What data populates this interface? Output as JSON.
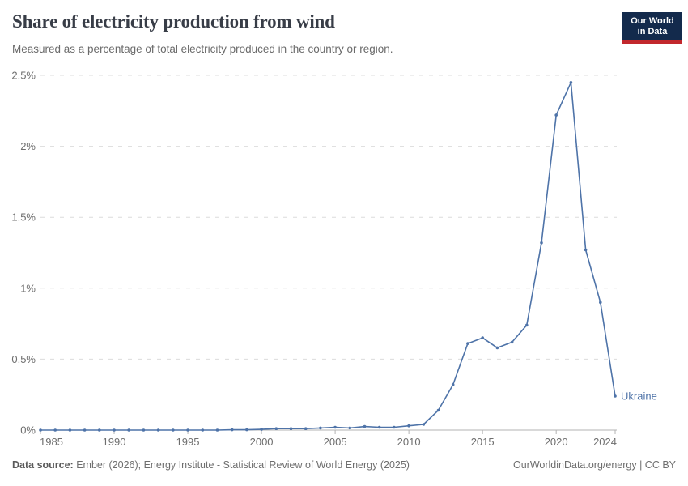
{
  "header": {
    "title": "Share of electricity production from wind",
    "subtitle": "Measured as a percentage of total electricity produced in the country or region.",
    "logo": {
      "line1": "Our World",
      "line2": "in Data"
    }
  },
  "footer": {
    "datasource_label": "Data source:",
    "datasource_text": " Ember (2026); Energy Institute - Statistical Review of World Energy (2025)",
    "link_text": "OurWorldinData.org/energy | CC BY"
  },
  "colors": {
    "line": "#4e73a8",
    "grid": "#dcdcdc",
    "axis": "#b3b3b3",
    "tick_label": "#6e6e6e",
    "logo_bg": "#132a4c",
    "logo_bar": "#c2282d"
  },
  "chart_data": {
    "type": "line",
    "title": "Share of electricity production from wind",
    "subtitle": "Measured as a percentage of total electricity produced in the country or region.",
    "xlabel": "",
    "ylabel": "",
    "xlim": [
      1985,
      2024
    ],
    "ylim": [
      0,
      2.5
    ],
    "grid": "horizontal-dashed",
    "legend_position": "end-of-line",
    "x": [
      1985,
      1986,
      1987,
      1988,
      1989,
      1990,
      1991,
      1992,
      1993,
      1994,
      1995,
      1996,
      1997,
      1998,
      1999,
      2000,
      2001,
      2002,
      2003,
      2004,
      2005,
      2006,
      2007,
      2008,
      2009,
      2010,
      2011,
      2012,
      2013,
      2014,
      2015,
      2016,
      2017,
      2018,
      2019,
      2020,
      2021,
      2022,
      2023,
      2024
    ],
    "series": [
      {
        "name": "Ukraine",
        "color": "#4e73a8",
        "values": [
          0,
          0,
          0,
          0,
          0,
          0,
          0,
          0,
          0,
          0,
          0,
          0,
          0,
          0.002,
          0.002,
          0.005,
          0.01,
          0.01,
          0.01,
          0.015,
          0.02,
          0.015,
          0.025,
          0.02,
          0.02,
          0.03,
          0.04,
          0.14,
          0.32,
          0.61,
          0.65,
          0.58,
          0.62,
          0.74,
          1.32,
          2.22,
          2.45,
          1.27,
          0.9,
          0.24
        ]
      }
    ],
    "xticks": [
      1985,
      1990,
      1995,
      2000,
      2005,
      2010,
      2015,
      2020,
      2024
    ],
    "yticks": [
      {
        "value": 0,
        "label": "0%"
      },
      {
        "value": 0.5,
        "label": "0.5%"
      },
      {
        "value": 1,
        "label": "1%"
      },
      {
        "value": 1.5,
        "label": "1.5%"
      },
      {
        "value": 2,
        "label": "2%"
      },
      {
        "value": 2.5,
        "label": "2.5%"
      }
    ]
  }
}
